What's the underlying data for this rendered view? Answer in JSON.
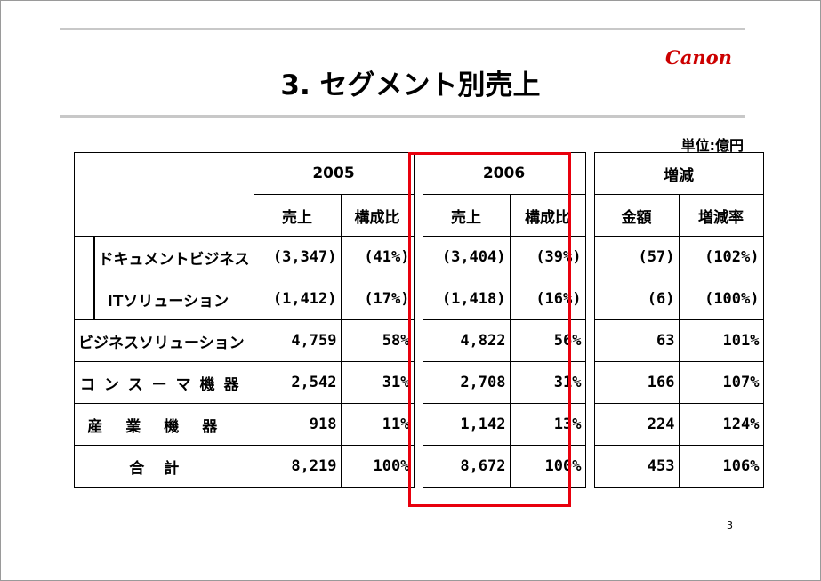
{
  "slide": {
    "title": "3. セグメント別売上",
    "unit": "単位:億円",
    "page_number": "3",
    "logo_text": "Canon",
    "brand_color": "#cc0000",
    "highlight_color": "#e8000d"
  },
  "table": {
    "header": {
      "year_2005": "2005",
      "year_2006": "2006",
      "change": "増減",
      "sales": "売上",
      "ratio": "構成比",
      "amount": "金額",
      "change_rate": "増減率"
    },
    "rows": [
      {
        "label": "ドキュメントビジネス",
        "s2005": "(3,347)",
        "r2005": "(41%)",
        "s2006": "(3,404)",
        "r2006": "(39%)",
        "amount": "(57)",
        "rate": "(102%)"
      },
      {
        "label": "ITソリューション",
        "s2005": "(1,412)",
        "r2005": "(17%)",
        "s2006": "(1,418)",
        "r2006": "(16%)",
        "amount": "(6)",
        "rate": "(100%)"
      },
      {
        "label": "ビジネスソリューション",
        "s2005": "4,759",
        "r2005": "58%",
        "s2006": "4,822",
        "r2006": "56%",
        "amount": "63",
        "rate": "101%"
      },
      {
        "label": "コンスーマ機器",
        "s2005": "2,542",
        "r2005": "31%",
        "s2006": "2,708",
        "r2006": "31%",
        "amount": "166",
        "rate": "107%"
      },
      {
        "label": "産業機器",
        "s2005": "918",
        "r2005": "11%",
        "s2006": "1,142",
        "r2006": "13%",
        "amount": "224",
        "rate": "124%"
      },
      {
        "label": "合計",
        "s2005": "8,219",
        "r2005": "100%",
        "s2006": "8,672",
        "r2006": "100%",
        "amount": "453",
        "rate": "106%"
      }
    ]
  }
}
